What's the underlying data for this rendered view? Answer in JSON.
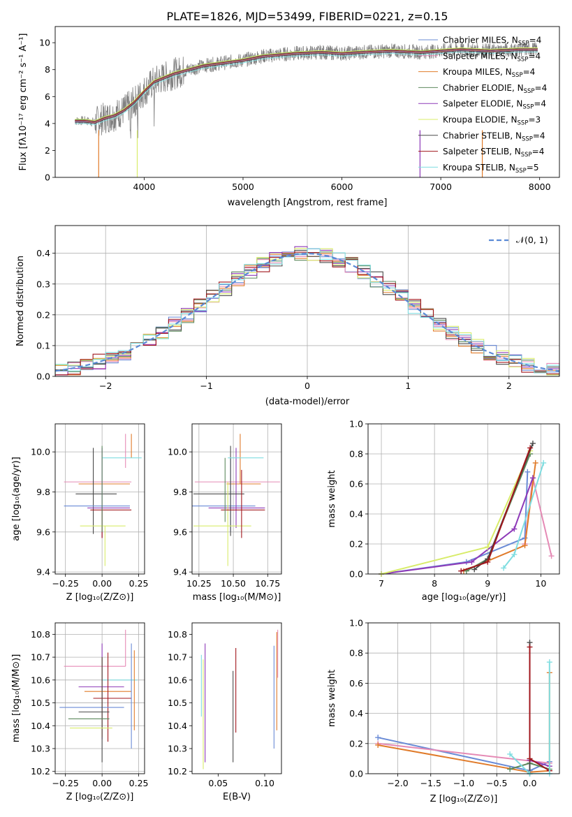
{
  "figure_title": "PLATE=1826, MJD=53499, FIBERID=0221, z=0.15",
  "models": [
    {
      "name": "Chabrier MILES",
      "nssp": "4",
      "color": "#6a8bd6"
    },
    {
      "name": "Salpeter MILES",
      "nssp": "4",
      "color": "#e58ab5"
    },
    {
      "name": "Kroupa MILES",
      "nssp": "4",
      "color": "#e07b2a"
    },
    {
      "name": "Chabrier ELODIE",
      "nssp": "4",
      "color": "#5e8a5e"
    },
    {
      "name": "Salpeter ELODIE",
      "nssp": "4",
      "color": "#8e3ab8"
    },
    {
      "name": "Kroupa ELODIE",
      "nssp": "3",
      "color": "#d8ec6a"
    },
    {
      "name": "Chabrier STELIB",
      "nssp": "4",
      "color": "#4a4a4a"
    },
    {
      "name": "Salpeter STELIB",
      "nssp": "4",
      "color": "#a1161c"
    },
    {
      "name": "Kroupa STELIB",
      "nssp": "5",
      "color": "#7fdde0"
    }
  ],
  "chart_data": [
    {
      "type": "line",
      "id": "spectrum",
      "xlabel": "wavelength [Angstrom, rest frame]",
      "ylabel": "Flux [fλ10⁻¹⁷ erg cm⁻² s⁻¹ A⁻¹]",
      "xlim": [
        3100,
        8200
      ],
      "ylim": [
        0,
        11.2
      ],
      "xticks": [
        4000,
        5000,
        6000,
        7000,
        8000
      ],
      "yticks": [
        0,
        2,
        4,
        6,
        8,
        10
      ],
      "legend": "top-right",
      "continuum": {
        "x": [
          3300,
          3400,
          3500,
          3600,
          3700,
          3800,
          3900,
          4000,
          4100,
          4200,
          4300,
          4400,
          4500,
          4600,
          4800,
          5000,
          5200,
          5500,
          5800,
          6000,
          6200,
          6500,
          6800,
          7000,
          7200,
          7500,
          7800,
          8000
        ],
        "y": [
          4.2,
          4.2,
          4.1,
          4.4,
          4.6,
          5.0,
          5.6,
          6.4,
          7.1,
          7.4,
          7.7,
          7.9,
          8.1,
          8.3,
          8.5,
          8.7,
          9.0,
          9.2,
          9.3,
          9.2,
          9.3,
          9.4,
          9.3,
          9.4,
          9.5,
          9.4,
          9.5,
          9.5
        ]
      }
    },
    {
      "type": "bar",
      "id": "residual_hist",
      "xlabel": "(data-model)/error",
      "ylabel": "Normed distribution",
      "xlim": [
        -2.5,
        2.5
      ],
      "ylim": [
        0,
        0.49
      ],
      "xticks": [
        -2,
        -1,
        0,
        1,
        2
      ],
      "yticks": [
        0.0,
        0.1,
        0.2,
        0.3,
        0.4
      ],
      "grid": true,
      "legend": "top-right",
      "reference_label": "𝒩(0, 1)",
      "reference_color": "#5b8bd6"
    },
    {
      "type": "scatter",
      "id": "age_vs_Z",
      "xlabel": "Z [log₁₀(Z/Z⊙)]",
      "ylabel": "age  [log₁₀(age/yr)]",
      "xlim": [
        -0.32,
        0.29
      ],
      "ylim": [
        9.39,
        10.14
      ],
      "xticks": [
        -0.25,
        0.0,
        0.25
      ],
      "yticks": [
        9.4,
        9.6,
        9.8,
        10.0
      ],
      "grid": true,
      "points": [
        {
          "x": -0.01,
          "y": 9.97,
          "xerr": [
            0.0,
            0.0
          ],
          "yerr": [
            0.05,
            0.05
          ]
        },
        {
          "x": -0.27,
          "y": 9.85,
          "xerr": [
            0.0,
            0.45
          ],
          "yerr": [
            0.0,
            0.0
          ]
        },
        {
          "x": -0.2,
          "y": 9.84,
          "xerr": [
            0.0,
            0.4
          ],
          "yerr": [
            0.0,
            0.0
          ]
        },
        {
          "x": 0.0,
          "y": 9.83,
          "xerr": [
            0.2,
            0.0
          ],
          "yerr": [
            0.0,
            0.2
          ]
        },
        {
          "x": -0.15,
          "y": 9.72,
          "xerr": [
            0.0,
            0.33
          ],
          "yerr": [
            0.0,
            0.0
          ]
        },
        {
          "x": -0.16,
          "y": 9.63,
          "xerr": [
            0.0,
            0.34
          ],
          "yerr": [
            0.0,
            0.0
          ]
        },
        {
          "x": -0.25,
          "y": 9.73,
          "xerr": [
            0.0,
            0.45
          ],
          "yerr": [
            0.0,
            0.0
          ]
        },
        {
          "x": 0.0,
          "y": 9.71,
          "xerr": [
            0.15,
            0.24
          ],
          "yerr": [
            0.14,
            0.0
          ]
        },
        {
          "x": 0.0,
          "y": 9.97,
          "xerr": [
            0.0,
            0.27
          ],
          "yerr": [
            0.0,
            0.0
          ]
        }
      ]
    },
    {
      "type": "scatter",
      "id": "age_vs_mass",
      "xlabel": "mass [log₁₀(M/M⊙)]",
      "ylabel": "",
      "xlim": [
        10.2,
        10.85
      ],
      "ylim": [
        9.39,
        10.14
      ],
      "xticks": [
        10.25,
        10.5,
        10.75
      ],
      "yticks": [
        9.4,
        9.6,
        9.8,
        10.0
      ],
      "grid": true
    },
    {
      "type": "line",
      "id": "massweight_vs_age",
      "xlabel": "age  [log₁₀(age/yr)]",
      "ylabel": "mass weight",
      "xlim": [
        6.75,
        10.35
      ],
      "ylim": [
        0,
        1.0
      ],
      "xticks": [
        7,
        8,
        9,
        10
      ],
      "yticks": [
        0.0,
        0.2,
        0.4,
        0.6,
        0.8,
        1.0
      ],
      "grid": true,
      "series": [
        {
          "x": [
            7.0,
            8.6,
            9.7,
            9.75
          ],
          "y": [
            0.0,
            0.08,
            0.24,
            0.68
          ]
        },
        {
          "x": [
            9.7,
            9.85,
            10.2
          ],
          "y": [
            0.2,
            0.64,
            0.12
          ]
        },
        {
          "x": [
            8.55,
            9.7,
            9.9
          ],
          "y": [
            0.02,
            0.19,
            0.74
          ]
        },
        {
          "x": [
            8.6,
            9.0,
            9.8
          ],
          "y": [
            0.02,
            0.1,
            0.8
          ]
        },
        {
          "x": [
            7.0,
            8.7,
            9.5,
            9.85
          ],
          "y": [
            0.0,
            0.08,
            0.3,
            0.64
          ]
        },
        {
          "x": [
            7.0,
            9.0,
            9.8
          ],
          "y": [
            0.0,
            0.18,
            0.82
          ]
        },
        {
          "x": [
            8.75,
            9.0,
            9.85
          ],
          "y": [
            0.03,
            0.1,
            0.87
          ]
        },
        {
          "x": [
            8.5,
            9.0,
            9.8
          ],
          "y": [
            0.02,
            0.08,
            0.84
          ]
        },
        {
          "x": [
            9.3,
            9.5,
            10.05
          ],
          "y": [
            0.04,
            0.13,
            0.74
          ]
        }
      ]
    },
    {
      "type": "scatter",
      "id": "mass_vs_Z",
      "xlabel": "Z [log₁₀(Z/Z⊙)]",
      "ylabel": "mass [log₁₀(M/M⊙)]",
      "xlim": [
        -0.32,
        0.29
      ],
      "ylim": [
        10.19,
        10.85
      ],
      "xticks": [
        -0.25,
        0.0,
        0.25
      ],
      "yticks": [
        10.2,
        10.3,
        10.4,
        10.5,
        10.6,
        10.7,
        10.8
      ],
      "grid": true
    },
    {
      "type": "scatter",
      "id": "mass_vs_ebv",
      "xlabel": "E(B-V)",
      "ylabel": "",
      "xlim": [
        0.022,
        0.118
      ],
      "ylim": [
        10.19,
        10.85
      ],
      "xticks": [
        0.05,
        0.1
      ],
      "yticks": [
        10.2,
        10.3,
        10.4,
        10.5,
        10.6,
        10.7,
        10.8
      ],
      "grid": false,
      "points": [
        {
          "x": 0.032,
          "ylo": 10.44,
          "yhi": 10.71,
          "c": 8
        },
        {
          "x": 0.034,
          "ylo": 10.21,
          "yhi": 10.69,
          "c": 5
        },
        {
          "x": 0.036,
          "ylo": 10.24,
          "yhi": 10.76,
          "c": 4
        },
        {
          "x": 0.066,
          "ylo": 10.24,
          "yhi": 10.64,
          "c": 6
        },
        {
          "x": 0.069,
          "ylo": 10.37,
          "yhi": 10.74,
          "c": 7
        },
        {
          "x": 0.11,
          "ylo": 10.3,
          "yhi": 10.75,
          "c": 0
        },
        {
          "x": 0.113,
          "ylo": 10.38,
          "yhi": 10.81,
          "c": 2
        },
        {
          "x": 0.114,
          "ylo": 10.61,
          "yhi": 10.82,
          "c": 1
        }
      ]
    },
    {
      "type": "line",
      "id": "massweight_vs_Z",
      "xlabel": "Z [log₁₀(Z/Z⊙)]",
      "ylabel": "mass weight",
      "xlim": [
        -2.45,
        0.45
      ],
      "ylim": [
        0,
        1.0
      ],
      "xticks": [
        -2.0,
        -1.5,
        -1.0,
        -0.5,
        0.0
      ],
      "yticks": [
        0.0,
        0.2,
        0.4,
        0.6,
        0.8,
        1.0
      ],
      "grid": true
    }
  ]
}
